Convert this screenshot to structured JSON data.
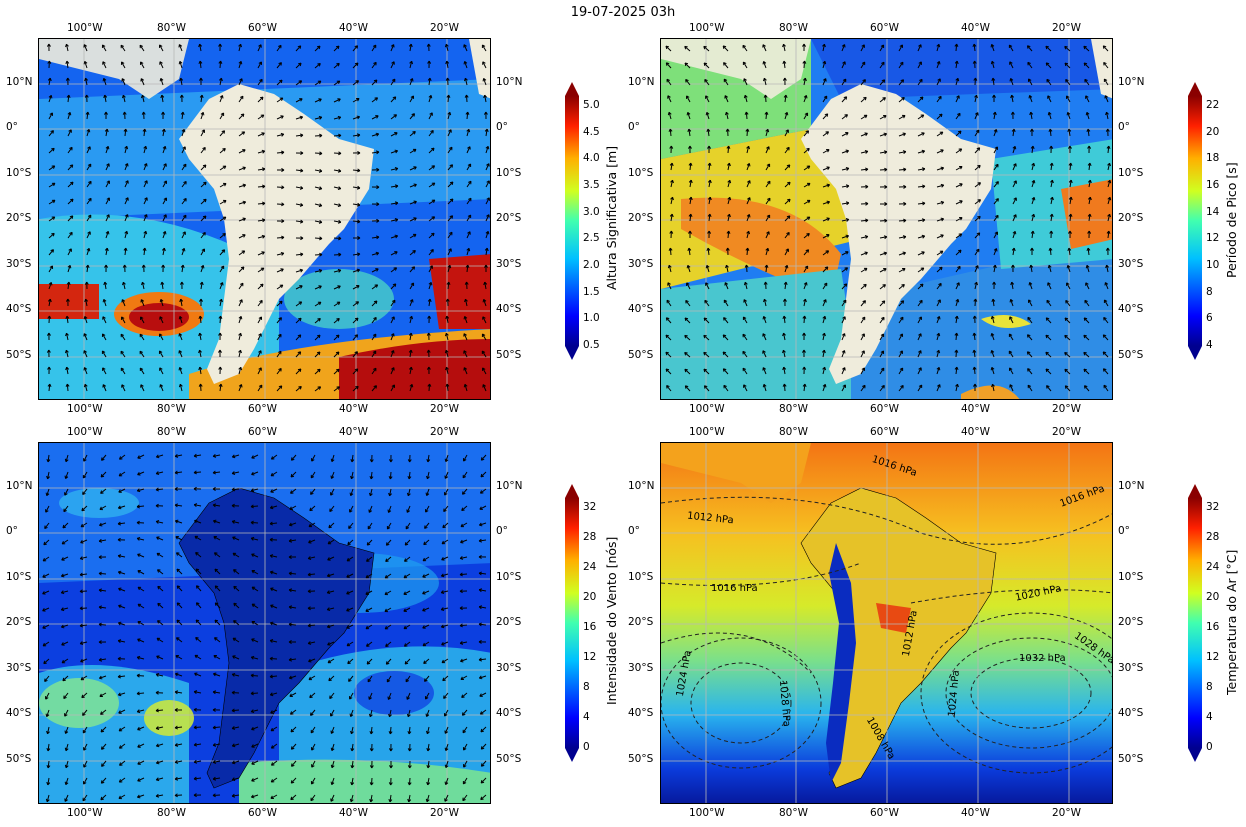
{
  "title": "19-07-2025 03h",
  "axes": {
    "lon_labels": [
      "100°W",
      "80°W",
      "60°W",
      "40°W",
      "20°W"
    ],
    "lat_labels": [
      "10°N",
      "0°",
      "10°S",
      "20°S",
      "30°S",
      "40°S",
      "50°S"
    ]
  },
  "panels": [
    {
      "id": "hs",
      "colorbar_label": "Altura Significativa [m]",
      "colorbar_ticks": [
        "0.5",
        "1.0",
        "1.5",
        "2.0",
        "2.5",
        "3.0",
        "3.5",
        "4.0",
        "4.5",
        "5.0"
      ],
      "colormap": "jet",
      "arrows": "black"
    },
    {
      "id": "tp",
      "colorbar_label": "Período de Pico [s]",
      "colorbar_ticks": [
        "4",
        "6",
        "8",
        "10",
        "12",
        "14",
        "16",
        "18",
        "20",
        "22"
      ],
      "colormap": "jet",
      "arrows": "black"
    },
    {
      "id": "wind",
      "colorbar_label": "Intensidade do Vento [nós]",
      "colorbar_ticks": [
        "0",
        "4",
        "8",
        "12",
        "16",
        "20",
        "24",
        "28",
        "32"
      ],
      "colormap": "jet",
      "arrows": "black"
    },
    {
      "id": "tair",
      "colorbar_label": "Temperatura do Ar [°C]",
      "colorbar_ticks": [
        "0",
        "4",
        "8",
        "12",
        "16",
        "20",
        "24",
        "28",
        "32"
      ],
      "colormap": "jet",
      "isobar_labels": [
        "1016 hPa",
        "1012 hPa",
        "1016 hPa",
        "1016 hPa",
        "1020 hPa",
        "1012 hPa",
        "1028 hPa",
        "1032 hPa",
        "1024 hPa",
        "1024 hPa",
        "1028 hPa",
        "1008 hPa"
      ]
    }
  ],
  "colors": {
    "land": "#efecdc",
    "ocean_low": "#0a2fd8",
    "ocean_mid": "#2aa8f0",
    "ocean_high": "#e32b10"
  }
}
